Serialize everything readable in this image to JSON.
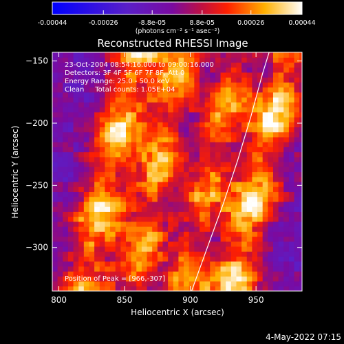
{
  "colorbar": {
    "tick_labels": [
      "-0.00044",
      "-0.00026",
      "-8.8e-05",
      "8.8e-05",
      "0.00026",
      "0.00044"
    ],
    "tick_values": [
      -0.00044,
      -0.00026,
      -8.8e-05,
      8.8e-05,
      0.00026,
      0.00044
    ],
    "range": [
      -0.00044,
      0.00044
    ],
    "unit_label": "(photons cm⁻² s⁻¹ asec⁻²)",
    "colormap": "blue-purple-red-yellow-white"
  },
  "chart_data": {
    "type": "heatmap",
    "title": "Reconstructed RHESSI Image",
    "xlabel": "Heliocentric X (arcsec)",
    "ylabel": "Heliocentric Y (arcsec)",
    "xlim": [
      795,
      985
    ],
    "ylim": [
      -335,
      -143
    ],
    "x_ticks": [
      800,
      850,
      900,
      950
    ],
    "y_ticks": [
      -150,
      -200,
      -250,
      -300
    ],
    "x_tick_labels": [
      "800",
      "850",
      "900",
      "950"
    ],
    "y_tick_labels": [
      "−150",
      "−200",
      "−250",
      "−300"
    ],
    "peak": [
      966,
      -307
    ],
    "limb_arc": [
      [
        901,
        -335
      ],
      [
        913,
        -300
      ],
      [
        925,
        -265
      ],
      [
        936,
        -230
      ],
      [
        946,
        -195
      ],
      [
        955,
        -160
      ],
      [
        960,
        -143
      ]
    ],
    "bright_ridges": [
      {
        "x0": 818,
        "y0": -335,
        "x1": 860,
        "y1": -143,
        "width": 14,
        "strength": 0.95
      },
      {
        "x0": 858,
        "y0": -335,
        "x1": 895,
        "y1": -143,
        "width": 12,
        "strength": 0.85
      },
      {
        "x0": 898,
        "y0": -320,
        "x1": 935,
        "y1": -143,
        "width": 11,
        "strength": 0.75
      },
      {
        "x0": 930,
        "y0": -335,
        "x1": 975,
        "y1": -143,
        "width": 14,
        "strength": 1.0
      }
    ]
  },
  "annotations": {
    "line1": "23-Oct-2004 08:54:16.000 to 09:00:16.000",
    "line2": "Detectors: 3F 4F 5F 6F 7F 8F, Att 0",
    "line3": "Energy Range: 25.0 - 50.0 keV",
    "line4": "Clean     Total counts: 1.05E+04",
    "peak_label": "Position of Peak = [966,-307]"
  },
  "footer": {
    "timestamp": "4-May-2022 07:15"
  }
}
